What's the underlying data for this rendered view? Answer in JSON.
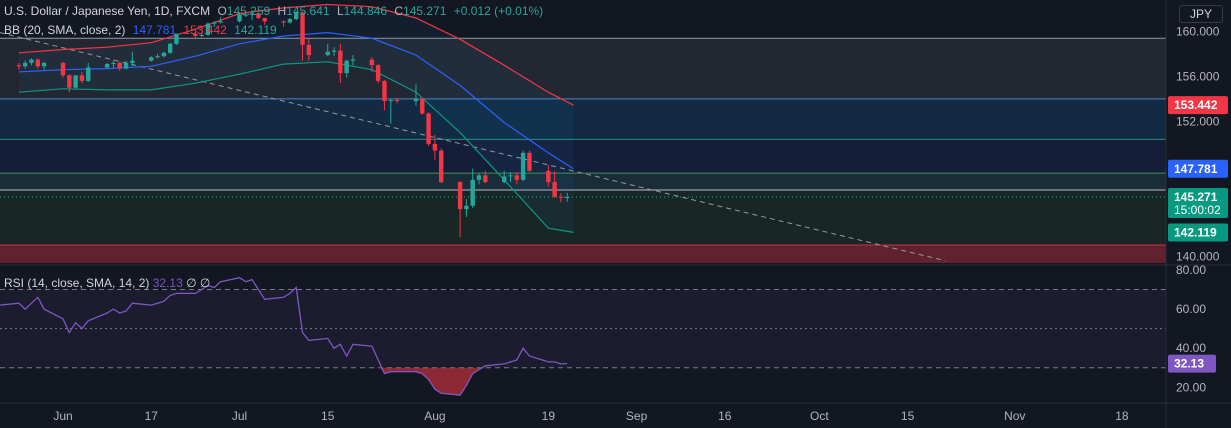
{
  "header": {
    "symbol": "U.S. Dollar / Japanese Yen, 1D, FXCM",
    "o_label": "O",
    "o_value": "145.259",
    "h_label": "H",
    "h_value": "145.641",
    "l_label": "L",
    "l_value": "144.846",
    "c_label": "C",
    "c_value": "145.271",
    "change": "+0.012 (+0.01%)"
  },
  "bb_header": {
    "label": "BB (20, SMA, close, 2)",
    "basis": "147.781",
    "upper": "153.442",
    "lower": "142.119"
  },
  "rsi_header": {
    "label": "RSI (14, close, SMA, 14, 2)",
    "value": "32.13",
    "extra1": "∅",
    "extra2": "∅"
  },
  "currency": "JPY",
  "colors": {
    "up": "#26a69a",
    "down": "#f23645",
    "bb_basis": "#2962ff",
    "bb_upper": "#f23645",
    "bb_lower": "#089981",
    "rsi": "#7e57c2",
    "background": "#131722"
  },
  "chart_data": [
    {
      "type": "candlestick",
      "title": "U.S. Dollar / Japanese Yen, 1D, FXCM",
      "y_ticks": [
        140.0,
        144.0,
        148.0,
        152.0,
        156.0,
        160.0
      ],
      "y_tick_labels": [
        "140.000",
        "",
        "",
        "152.000",
        "156.000",
        "160.000"
      ],
      "ylim": [
        139.4,
        162.8
      ],
      "x_tick_labels": [
        "Jun",
        "17",
        "Jul",
        "15",
        "Aug",
        "19",
        "Sep",
        "16",
        "Oct",
        "15",
        "Nov",
        "18"
      ],
      "x_tick_dates": [
        "2024-06-03",
        "2024-06-17",
        "2024-07-01",
        "2024-07-15",
        "2024-08-01",
        "2024-08-19",
        "2024-09-02",
        "2024-09-16",
        "2024-10-01",
        "2024-10-15",
        "2024-11-01",
        "2024-11-18"
      ],
      "x_range": [
        "2024-05-24",
        "2024-11-25"
      ],
      "price_labels": [
        {
          "value": 153.442,
          "text": "153.442",
          "color": "#f23645"
        },
        {
          "value": 147.781,
          "text": "147.781",
          "color": "#2962ff"
        },
        {
          "value": 145.271,
          "text": "145.271",
          "sub": "15:00:02",
          "color": "#089981"
        },
        {
          "value": 142.119,
          "text": "142.119",
          "color": "#089981"
        }
      ],
      "zones": [
        {
          "from": 154.0,
          "to": 159.4,
          "color": "rgba(255,255,255,0.07)"
        },
        {
          "from": 145.9,
          "to": 154.0,
          "color": "rgba(41,98,255,0.10)"
        },
        {
          "from": 150.4,
          "to": 154.0,
          "color": "rgba(0,128,128,0.14)"
        },
        {
          "from": 141.0,
          "to": 147.4,
          "color": "rgba(76,175,80,0.10)"
        },
        {
          "from": 139.4,
          "to": 141.0,
          "color": "rgba(242,54,69,0.35)"
        }
      ],
      "hlines": [
        159.4,
        154.0,
        150.4,
        147.4,
        145.9,
        141.0
      ],
      "trendline": {
        "from": [
          "2024-05-24",
          159.9
        ],
        "to": [
          "2024-10-21",
          139.6
        ]
      },
      "candles": [
        [
          "2024-05-27",
          157.0,
          157.2,
          156.6,
          156.9
        ],
        [
          "2024-05-28",
          156.9,
          157.4,
          156.7,
          157.2
        ],
        [
          "2024-05-29",
          157.2,
          157.6,
          157.0,
          157.5
        ],
        [
          "2024-05-30",
          157.5,
          157.6,
          156.7,
          156.9
        ],
        [
          "2024-05-31",
          156.9,
          157.3,
          156.6,
          157.2
        ],
        [
          "2024-06-03",
          157.2,
          157.3,
          155.9,
          156.1
        ],
        [
          "2024-06-04",
          156.1,
          156.2,
          154.6,
          155.0
        ],
        [
          "2024-06-05",
          155.0,
          156.1,
          154.9,
          156.1
        ],
        [
          "2024-06-06",
          156.1,
          156.4,
          155.4,
          155.6
        ],
        [
          "2024-06-07",
          155.6,
          157.2,
          155.5,
          156.8
        ],
        [
          "2024-06-10",
          156.8,
          157.2,
          156.7,
          157.1
        ],
        [
          "2024-06-11",
          157.1,
          157.4,
          156.8,
          157.2
        ],
        [
          "2024-06-12",
          157.2,
          157.3,
          156.5,
          156.7
        ],
        [
          "2024-06-13",
          156.7,
          157.4,
          156.6,
          157.2
        ],
        [
          "2024-06-14",
          157.2,
          158.2,
          156.9,
          157.4
        ],
        [
          "2024-06-17",
          157.4,
          157.8,
          157.3,
          157.7
        ],
        [
          "2024-06-18",
          157.7,
          158.0,
          157.6,
          157.8
        ],
        [
          "2024-06-19",
          157.8,
          158.2,
          157.7,
          158.1
        ],
        [
          "2024-06-20",
          158.1,
          159.0,
          158.0,
          158.9
        ],
        [
          "2024-06-21",
          158.9,
          159.8,
          158.8,
          159.8
        ],
        [
          "2024-06-24",
          159.8,
          159.9,
          159.4,
          159.6
        ],
        [
          "2024-06-25",
          159.6,
          159.9,
          159.5,
          159.7
        ],
        [
          "2024-06-26",
          159.7,
          160.8,
          159.6,
          160.7
        ],
        [
          "2024-06-27",
          160.7,
          160.9,
          160.4,
          160.8
        ],
        [
          "2024-06-28",
          160.8,
          161.3,
          160.7,
          160.9
        ],
        [
          "2024-07-01",
          160.9,
          161.7,
          160.8,
          161.5
        ],
        [
          "2024-07-02",
          161.5,
          161.8,
          161.3,
          161.5
        ],
        [
          "2024-07-03",
          161.5,
          161.9,
          161.0,
          161.6
        ],
        [
          "2024-07-04",
          161.6,
          161.7,
          161.1,
          161.2
        ],
        [
          "2024-07-05",
          161.2,
          161.2,
          160.6,
          160.9
        ],
        [
          "2024-07-08",
          160.9,
          161.0,
          160.4,
          160.8
        ],
        [
          "2024-07-09",
          160.8,
          161.2,
          160.7,
          161.1
        ],
        [
          "2024-07-10",
          161.1,
          161.8,
          161.0,
          161.7
        ],
        [
          "2024-07-11",
          161.7,
          161.8,
          157.4,
          158.8
        ],
        [
          "2024-07-12",
          158.8,
          159.4,
          157.4,
          157.9
        ],
        [
          "2024-07-15",
          157.9,
          158.9,
          157.8,
          158.2
        ],
        [
          "2024-07-16",
          158.2,
          158.6,
          157.8,
          158.3
        ],
        [
          "2024-07-17",
          158.3,
          158.9,
          155.4,
          156.3
        ],
        [
          "2024-07-18",
          156.3,
          157.5,
          155.9,
          157.4
        ],
        [
          "2024-07-19",
          157.4,
          157.9,
          157.0,
          157.5
        ],
        [
          "2024-07-22",
          157.5,
          157.7,
          156.4,
          157.0
        ],
        [
          "2024-07-23",
          157.0,
          157.1,
          155.4,
          155.6
        ],
        [
          "2024-07-24",
          155.6,
          155.7,
          153.0,
          153.8
        ],
        [
          "2024-07-25",
          153.8,
          154.0,
          151.8,
          153.9
        ],
        [
          "2024-07-26",
          153.9,
          154.1,
          153.6,
          153.8
        ],
        [
          "2024-07-29",
          153.8,
          155.3,
          153.4,
          154.0
        ],
        [
          "2024-07-30",
          154.0,
          154.1,
          152.6,
          152.7
        ],
        [
          "2024-07-31",
          152.7,
          152.8,
          149.8,
          150.0
        ],
        [
          "2024-08-01",
          150.0,
          150.8,
          148.6,
          149.4
        ],
        [
          "2024-08-02",
          149.4,
          149.6,
          146.5,
          146.6
        ],
        [
          "2024-08-05",
          146.6,
          146.7,
          141.7,
          144.2
        ],
        [
          "2024-08-06",
          144.2,
          145.1,
          143.5,
          144.5
        ],
        [
          "2024-08-07",
          144.5,
          147.8,
          144.3,
          146.8
        ],
        [
          "2024-08-08",
          146.8,
          147.4,
          146.4,
          147.2
        ],
        [
          "2024-08-09",
          147.2,
          147.6,
          146.5,
          146.6
        ],
        [
          "2024-08-12",
          146.6,
          147.6,
          146.5,
          147.1
        ],
        [
          "2024-08-13",
          147.1,
          147.5,
          146.6,
          147.2
        ],
        [
          "2024-08-14",
          147.2,
          147.5,
          146.4,
          146.8
        ],
        [
          "2024-08-15",
          146.8,
          149.4,
          146.7,
          149.2
        ],
        [
          "2024-08-16",
          149.2,
          149.4,
          147.5,
          147.6
        ],
        [
          "2024-08-19",
          147.6,
          148.1,
          146.2,
          146.6
        ],
        [
          "2024-08-20",
          146.6,
          147.6,
          145.2,
          145.3
        ],
        [
          "2024-08-21",
          145.3,
          145.6,
          144.8,
          145.259
        ],
        [
          "2024-08-22",
          145.259,
          145.641,
          144.846,
          145.271
        ]
      ],
      "bb": {
        "dates": [
          "2024-05-27",
          "2024-06-03",
          "2024-06-10",
          "2024-06-17",
          "2024-06-24",
          "2024-07-01",
          "2024-07-08",
          "2024-07-15",
          "2024-07-22",
          "2024-07-29",
          "2024-08-05",
          "2024-08-12",
          "2024-08-19",
          "2024-08-23"
        ],
        "upper": [
          158.1,
          158.4,
          158.6,
          159.0,
          160.2,
          161.6,
          162.1,
          162.4,
          162.2,
          161.2,
          159.3,
          157.0,
          154.6,
          153.442
        ],
        "basis": [
          156.4,
          156.6,
          156.7,
          156.9,
          157.8,
          158.9,
          159.6,
          159.9,
          159.4,
          157.9,
          155.2,
          151.9,
          149.2,
          147.781
        ],
        "lower": [
          154.6,
          154.9,
          154.8,
          154.8,
          155.4,
          156.2,
          157.1,
          157.3,
          156.6,
          154.6,
          151.0,
          146.8,
          142.5,
          142.119
        ]
      }
    },
    {
      "type": "line",
      "title": "RSI (14, close, SMA, 14, 2)",
      "y_ticks": [
        20,
        40,
        60,
        80
      ],
      "y_tick_labels": [
        "20.00",
        "40.00",
        "60.00",
        "80.00"
      ],
      "ylim": [
        12,
        82
      ],
      "levels": [
        70,
        50,
        30
      ],
      "value_label": "32.13",
      "series": [
        {
          "color": "#7e57c2",
          "dates": [
            "2024-05-24",
            "2024-05-27",
            "2024-05-28",
            "2024-05-29",
            "2024-05-30",
            "2024-05-31",
            "2024-06-03",
            "2024-06-04",
            "2024-06-05",
            "2024-06-06",
            "2024-06-07",
            "2024-06-10",
            "2024-06-11",
            "2024-06-12",
            "2024-06-13",
            "2024-06-14",
            "2024-06-17",
            "2024-06-18",
            "2024-06-19",
            "2024-06-20",
            "2024-06-21",
            "2024-06-24",
            "2024-06-25",
            "2024-06-26",
            "2024-06-27",
            "2024-06-28",
            "2024-07-01",
            "2024-07-02",
            "2024-07-03",
            "2024-07-04",
            "2024-07-05",
            "2024-07-08",
            "2024-07-09",
            "2024-07-10",
            "2024-07-11",
            "2024-07-12",
            "2024-07-15",
            "2024-07-16",
            "2024-07-17",
            "2024-07-18",
            "2024-07-19",
            "2024-07-22",
            "2024-07-23",
            "2024-07-24",
            "2024-07-25",
            "2024-07-26",
            "2024-07-29",
            "2024-07-30",
            "2024-07-31",
            "2024-08-01",
            "2024-08-02",
            "2024-08-05",
            "2024-08-06",
            "2024-08-07",
            "2024-08-08",
            "2024-08-09",
            "2024-08-12",
            "2024-08-13",
            "2024-08-14",
            "2024-08-15",
            "2024-08-16",
            "2024-08-19",
            "2024-08-20",
            "2024-08-21",
            "2024-08-22"
          ],
          "values": [
            62,
            63,
            60,
            63,
            66,
            60,
            55,
            48,
            53,
            50,
            54,
            58,
            60,
            58,
            59,
            63,
            62,
            63,
            64,
            67,
            68,
            68,
            70,
            72,
            71,
            74,
            76,
            74,
            75,
            70,
            65,
            66,
            68,
            71,
            48,
            44,
            45,
            40,
            42,
            36,
            42,
            41,
            34,
            27,
            28,
            28,
            28,
            27,
            24,
            19,
            17,
            16,
            21,
            27,
            29,
            31,
            32,
            33,
            34,
            40,
            36,
            33,
            33,
            32,
            32.13
          ]
        }
      ]
    }
  ]
}
